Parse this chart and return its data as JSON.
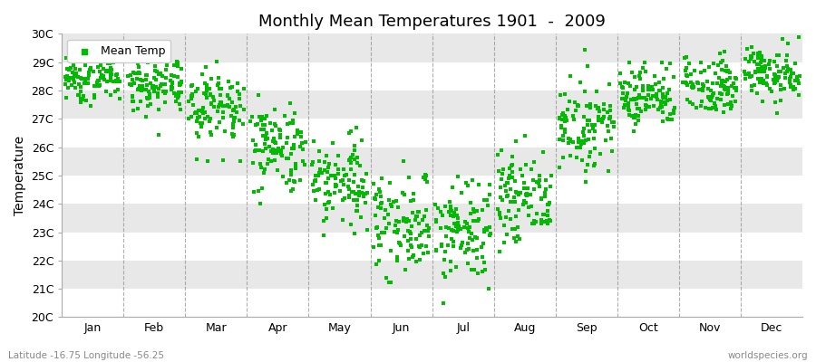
{
  "title": "Monthly Mean Temperatures 1901  -  2009",
  "ylabel": "Temperature",
  "bottom_left_text": "Latitude -16.75 Longitude -56.25",
  "bottom_right_text": "worldspecies.org",
  "legend_label": "Mean Temp",
  "ylim": [
    20,
    30
  ],
  "ytick_labels": [
    "20C",
    "21C",
    "22C",
    "23C",
    "24C",
    "25C",
    "26C",
    "27C",
    "28C",
    "29C",
    "30C"
  ],
  "ytick_values": [
    20,
    21,
    22,
    23,
    24,
    25,
    26,
    27,
    28,
    29,
    30
  ],
  "months": [
    "Jan",
    "Feb",
    "Mar",
    "Apr",
    "May",
    "Jun",
    "Jul",
    "Aug",
    "Sep",
    "Oct",
    "Nov",
    "Dec"
  ],
  "month_centers": [
    1,
    2,
    3,
    4,
    5,
    6,
    7,
    8,
    9,
    10,
    11,
    12
  ],
  "n_years": 109,
  "marker_color": "#00bb00",
  "marker": "s",
  "marker_size": 2.5,
  "bg_color": "#ffffff",
  "band_color": "#e8e8e8",
  "title_fontsize": 13,
  "axis_fontsize": 10,
  "tick_fontsize": 9,
  "mean_temps": [
    28.5,
    28.2,
    27.5,
    26.0,
    24.8,
    23.3,
    23.0,
    24.2,
    26.8,
    27.8,
    28.2,
    28.6
  ],
  "std_temps": [
    0.45,
    0.5,
    0.7,
    0.8,
    0.9,
    0.9,
    0.9,
    0.8,
    0.7,
    0.55,
    0.5,
    0.48
  ],
  "min_temps": [
    27.0,
    26.0,
    25.5,
    24.0,
    22.0,
    20.5,
    20.5,
    22.0,
    24.5,
    26.5,
    27.0,
    27.2
  ],
  "max_temps": [
    29.5,
    29.5,
    29.5,
    28.5,
    27.0,
    26.5,
    26.5,
    27.0,
    29.5,
    29.0,
    29.5,
    30.0
  ]
}
